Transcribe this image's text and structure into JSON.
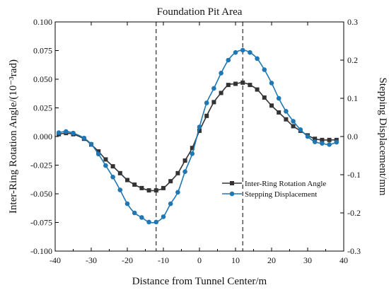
{
  "chart_data": {
    "type": "line",
    "title": "",
    "annotation": "Foundation Pit Area",
    "xlabel": "Distance from Tunnel Center/m",
    "ylabel_left": "Inter-Ring Rotation Angle/(10⁻³rad)",
    "ylabel_right": "Stepping Displacement/mm",
    "xlim": [
      -40,
      40
    ],
    "ylim_left": [
      -0.1,
      0.1
    ],
    "ylim_right": [
      -0.3,
      0.3
    ],
    "x_ticks": [
      "-40",
      "-30",
      "-20",
      "-10",
      "0",
      "10",
      "20",
      "30",
      "40"
    ],
    "y_left_ticks": [
      "-0.100",
      "-0.075",
      "-0.050",
      "-0.025",
      "0.000",
      "0.025",
      "0.050",
      "0.075",
      "0.100"
    ],
    "y_right_ticks": [
      "-0.3",
      "-0.2",
      "-0.1",
      "0.0",
      "0.1",
      "0.2",
      "0.3"
    ],
    "reference_lines_x": [
      -12,
      12
    ],
    "legend_position": "right-middle",
    "grid": false,
    "colors": {
      "series1": "#333333",
      "series2": "#1f77b4",
      "axis": "#000000"
    },
    "series": [
      {
        "name": "Inter-Ring Rotation Angle",
        "axis": "left",
        "marker": "square",
        "x": [
          -39,
          -37,
          -35,
          -32,
          -30,
          -28,
          -26,
          -24,
          -22,
          -20,
          -18,
          -16,
          -14,
          -12,
          -10,
          -8,
          -6,
          -4,
          -2,
          0,
          2,
          4,
          6,
          8,
          10,
          12,
          14,
          16,
          18,
          20,
          22,
          24,
          26,
          28,
          30,
          32,
          34,
          36,
          38
        ],
        "y": [
          0.002,
          0.003,
          0.002,
          -0.002,
          -0.007,
          -0.013,
          -0.02,
          -0.026,
          -0.032,
          -0.038,
          -0.042,
          -0.045,
          -0.047,
          -0.047,
          -0.045,
          -0.039,
          -0.032,
          -0.021,
          -0.01,
          0.005,
          0.018,
          0.03,
          0.038,
          0.045,
          0.046,
          0.047,
          0.045,
          0.041,
          0.034,
          0.027,
          0.021,
          0.015,
          0.009,
          0.005,
          0.001,
          -0.002,
          -0.003,
          -0.003,
          -0.003
        ]
      },
      {
        "name": "Stepping Displacement",
        "axis": "right",
        "marker": "circle",
        "x": [
          -39,
          -37,
          -35,
          -32,
          -30,
          -28,
          -26,
          -24,
          -22,
          -20,
          -18,
          -16,
          -14,
          -12,
          -10,
          -8,
          -6,
          -4,
          -2,
          0,
          2,
          4,
          6,
          8,
          10,
          12,
          14,
          16,
          18,
          20,
          22,
          24,
          26,
          28,
          30,
          32,
          34,
          36,
          38
        ],
        "y": [
          0.01,
          0.013,
          0.009,
          -0.004,
          -0.02,
          -0.046,
          -0.076,
          -0.106,
          -0.14,
          -0.176,
          -0.2,
          -0.212,
          -0.224,
          -0.224,
          -0.21,
          -0.176,
          -0.146,
          -0.092,
          -0.045,
          0.025,
          0.088,
          0.126,
          0.166,
          0.2,
          0.22,
          0.226,
          0.22,
          0.204,
          0.175,
          0.14,
          0.1,
          0.066,
          0.04,
          0.018,
          0.0,
          -0.014,
          -0.018,
          -0.021,
          -0.015
        ]
      }
    ]
  }
}
